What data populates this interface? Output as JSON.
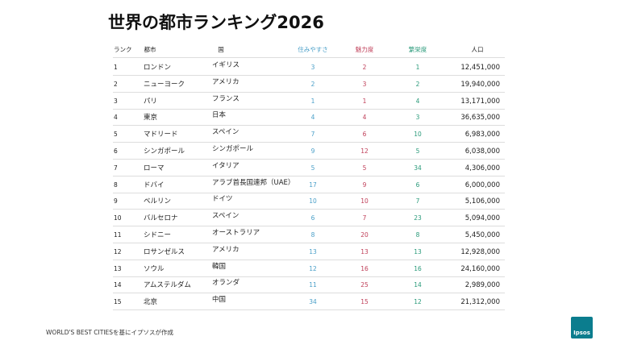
{
  "header": {
    "title": "世界の都市ランキング2026"
  },
  "table": {
    "columns": [
      "ランク",
      "都市",
      "国",
      "住みやすさ",
      "魅力度",
      "繁栄度",
      "人口"
    ],
    "rows": [
      [
        1,
        "ロンドン",
        "イギリス",
        3,
        2,
        1,
        "12,451,000"
      ],
      [
        2,
        "ニューヨーク",
        "アメリカ",
        2,
        3,
        2,
        "19,940,000"
      ],
      [
        3,
        "パリ",
        "フランス",
        1,
        1,
        4,
        "13,171,000"
      ],
      [
        4,
        "東京",
        "日本",
        4,
        4,
        3,
        "36,635,000"
      ],
      [
        5,
        "マドリード",
        "スペイン",
        7,
        6,
        10,
        "6,983,000"
      ],
      [
        6,
        "シンガポール",
        "シンガポール",
        9,
        12,
        5,
        "6,038,000"
      ],
      [
        7,
        "ローマ",
        "イタリア",
        5,
        5,
        34,
        "4,306,000"
      ],
      [
        8,
        "ドバイ",
        "アラブ首長国連邦（UAE）",
        17,
        9,
        6,
        "6,000,000"
      ],
      [
        9,
        "ベルリン",
        "ドイツ",
        10,
        10,
        7,
        "5,106,000"
      ],
      [
        10,
        "バルセロナ",
        "スペイン",
        6,
        7,
        23,
        "5,094,000"
      ],
      [
        11,
        "シドニー",
        "オーストラリア",
        8,
        20,
        8,
        "5,450,000"
      ],
      [
        12,
        "ロサンゼルス",
        "アメリカ",
        13,
        13,
        13,
        "12,928,000"
      ],
      [
        13,
        "ソウル",
        "韓国",
        12,
        16,
        16,
        "24,160,000"
      ],
      [
        14,
        "アムステルダム",
        "オランダ",
        11,
        25,
        14,
        "2,989,000"
      ],
      [
        15,
        "北京",
        "中国",
        34,
        15,
        12,
        "21,312,000"
      ]
    ]
  },
  "footer": {
    "source": "WORLD'S BEST CITIESを基にイプソスが作成",
    "logo": "Ipsos"
  }
}
